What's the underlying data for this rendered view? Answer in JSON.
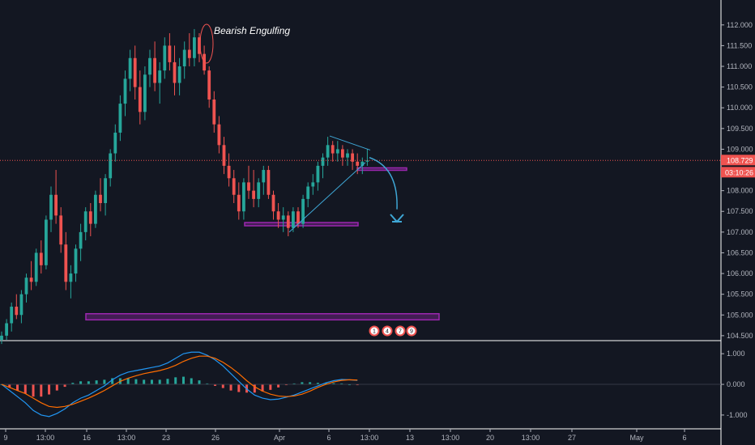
{
  "chart_data": [
    {
      "type": "candlestick",
      "title": "",
      "ylim": [
        104.4,
        112.25
      ],
      "y_ticks": [
        "112.000",
        "111.500",
        "111.000",
        "110.500",
        "110.000",
        "109.500",
        "109.000",
        "108.500",
        "108.000",
        "107.500",
        "107.000",
        "106.500",
        "106.000",
        "105.500",
        "105.000",
        "104.500"
      ],
      "y_tick_values": [
        112.0,
        111.5,
        111.0,
        110.5,
        110.0,
        109.5,
        109.0,
        108.5,
        108.0,
        107.5,
        107.0,
        106.5,
        106.0,
        105.5,
        105.0,
        104.5
      ],
      "x_ticks": [
        "9",
        "13:00",
        "16",
        "13:00",
        "23",
        "26",
        "Apr",
        "6",
        "13:00",
        "13",
        "13:00",
        "20",
        "13:00",
        "27",
        "May",
        "6"
      ],
      "grid": false,
      "current_price": 108.729,
      "current_price_label": "108.729",
      "countdown_label": "03:10:26",
      "series": [
        {
          "values": [
            [
              104.4,
              104.6,
              104.3,
              104.5
            ],
            [
              104.5,
              104.9,
              104.4,
              104.8
            ],
            [
              104.8,
              105.3,
              104.6,
              105.2
            ],
            [
              105.2,
              105.5,
              104.9,
              105.0
            ],
            [
              105.0,
              105.6,
              104.8,
              105.5
            ],
            [
              105.5,
              106.0,
              105.3,
              105.9
            ],
            [
              105.9,
              106.3,
              105.6,
              105.8
            ],
            [
              105.8,
              106.6,
              105.7,
              106.5
            ],
            [
              106.5,
              106.8,
              106.0,
              106.2
            ],
            [
              106.2,
              107.4,
              106.1,
              107.3
            ],
            [
              107.3,
              108.1,
              107.0,
              107.9
            ],
            [
              107.9,
              108.5,
              107.2,
              107.4
            ],
            [
              107.4,
              107.6,
              106.5,
              106.7
            ],
            [
              106.7,
              107.0,
              105.6,
              105.8
            ],
            [
              105.8,
              106.2,
              105.4,
              106.0
            ],
            [
              106.0,
              106.7,
              105.8,
              106.6
            ],
            [
              106.6,
              107.2,
              106.3,
              107.0
            ],
            [
              107.0,
              107.6,
              106.8,
              107.5
            ],
            [
              107.5,
              107.7,
              106.9,
              107.2
            ],
            [
              107.2,
              108.0,
              107.1,
              107.9
            ],
            [
              107.9,
              108.3,
              107.5,
              107.7
            ],
            [
              107.7,
              108.4,
              107.4,
              108.3
            ],
            [
              108.3,
              109.0,
              108.1,
              108.9
            ],
            [
              108.9,
              109.6,
              108.7,
              109.4
            ],
            [
              109.4,
              110.3,
              109.2,
              110.1
            ],
            [
              110.1,
              110.9,
              109.8,
              110.7
            ],
            [
              110.7,
              111.4,
              110.4,
              111.2
            ],
            [
              111.2,
              111.5,
              110.2,
              110.5
            ],
            [
              110.5,
              110.9,
              109.6,
              109.9
            ],
            [
              109.9,
              111.0,
              109.7,
              110.8
            ],
            [
              110.8,
              111.4,
              110.5,
              111.2
            ],
            [
              111.2,
              111.6,
              110.4,
              110.6
            ],
            [
              110.6,
              111.1,
              110.1,
              110.9
            ],
            [
              110.9,
              111.7,
              110.7,
              111.5
            ],
            [
              111.5,
              111.8,
              110.9,
              111.1
            ],
            [
              111.1,
              111.5,
              110.3,
              110.6
            ],
            [
              110.6,
              111.2,
              110.3,
              111.0
            ],
            [
              111.0,
              111.6,
              110.7,
              111.4
            ],
            [
              111.4,
              111.8,
              111.0,
              111.2
            ],
            [
              111.2,
              111.9,
              111.0,
              111.7
            ],
            [
              111.7,
              111.8,
              111.1,
              111.3
            ],
            [
              111.3,
              111.5,
              110.8,
              110.9
            ],
            [
              110.9,
              111.0,
              110.0,
              110.2
            ],
            [
              110.2,
              110.4,
              109.4,
              109.6
            ],
            [
              109.6,
              109.8,
              108.9,
              109.1
            ],
            [
              109.1,
              109.3,
              108.4,
              108.6
            ],
            [
              108.6,
              108.9,
              108.1,
              108.3
            ],
            [
              108.3,
              108.5,
              107.7,
              107.9
            ],
            [
              107.9,
              108.2,
              107.3,
              107.5
            ],
            [
              107.5,
              108.3,
              107.3,
              108.2
            ],
            [
              108.2,
              108.6,
              107.8,
              108.0
            ],
            [
              108.0,
              108.5,
              107.6,
              107.8
            ],
            [
              107.8,
              108.3,
              107.6,
              108.2
            ],
            [
              108.2,
              108.6,
              107.9,
              108.5
            ],
            [
              108.5,
              108.6,
              107.8,
              107.9
            ],
            [
              107.9,
              108.0,
              107.3,
              107.5
            ],
            [
              107.5,
              107.7,
              107.1,
              107.3
            ],
            [
              107.3,
              107.6,
              107.0,
              107.4
            ],
            [
              107.4,
              107.5,
              106.9,
              107.1
            ],
            [
              107.1,
              107.6,
              107.0,
              107.5
            ],
            [
              107.5,
              107.6,
              107.1,
              107.2
            ],
            [
              107.2,
              107.9,
              107.1,
              107.8
            ],
            [
              107.8,
              108.2,
              107.6,
              108.1
            ],
            [
              108.1,
              108.4,
              107.9,
              108.2
            ],
            [
              108.2,
              108.7,
              108.0,
              108.6
            ],
            [
              108.6,
              108.9,
              108.3,
              108.8
            ],
            [
              108.8,
              109.3,
              108.6,
              109.1
            ],
            [
              109.1,
              109.2,
              108.7,
              108.9
            ],
            [
              108.9,
              109.2,
              108.7,
              109.0
            ],
            [
              109.0,
              109.1,
              108.6,
              108.8
            ],
            [
              108.8,
              109.0,
              108.6,
              108.9
            ],
            [
              108.9,
              109.0,
              108.5,
              108.7
            ],
            [
              108.7,
              108.9,
              108.4,
              108.6
            ],
            [
              108.6,
              108.8,
              108.4,
              108.7
            ],
            [
              108.7,
              109.0,
              108.6,
              108.73
            ]
          ]
        }
      ]
    },
    {
      "type": "macd",
      "ylim": [
        -1.45,
        1.4
      ],
      "y_ticks": [
        "1.000",
        "0.000",
        "-1.000"
      ],
      "y_tick_values": [
        1.0,
        0.0,
        -1.0
      ],
      "series": [
        {
          "name": "",
          "values": [
            0.0,
            -0.2,
            -0.4,
            -0.6,
            -0.85,
            -1.0,
            -1.05,
            -0.95,
            -0.8,
            -0.6,
            -0.45,
            -0.35,
            -0.2,
            -0.05,
            0.15,
            0.3,
            0.4,
            0.45,
            0.5,
            0.55,
            0.6,
            0.7,
            0.85,
            1.0,
            1.05,
            1.05,
            0.95,
            0.8,
            0.6,
            0.35,
            0.1,
            -0.15,
            -0.35,
            -0.45,
            -0.5,
            -0.48,
            -0.42,
            -0.35,
            -0.25,
            -0.15,
            -0.05,
            0.05,
            0.12,
            0.16,
            0.15,
            0.13
          ]
        },
        {
          "name": "",
          "values": [
            0.0,
            -0.1,
            -0.2,
            -0.3,
            -0.45,
            -0.6,
            -0.72,
            -0.75,
            -0.72,
            -0.65,
            -0.55,
            -0.45,
            -0.33,
            -0.2,
            -0.05,
            0.1,
            0.2,
            0.28,
            0.35,
            0.4,
            0.45,
            0.52,
            0.62,
            0.75,
            0.85,
            0.92,
            0.92,
            0.85,
            0.72,
            0.55,
            0.35,
            0.12,
            -0.08,
            -0.22,
            -0.32,
            -0.38,
            -0.4,
            -0.38,
            -0.32,
            -0.22,
            -0.1,
            0.0,
            0.08,
            0.13,
            0.15,
            0.14
          ]
        }
      ]
    }
  ],
  "annotations": {
    "bearish_engulfing": "Bearish Engulfing",
    "badges": [
      "1",
      "4",
      "7",
      "9"
    ]
  },
  "colors": {
    "background": "#131722",
    "up": "#26a69a",
    "down": "#ef5350",
    "zone": "#9c27b0",
    "trendline": "#3fa7d6",
    "macd": "#2196f3",
    "signal": "#ff6d00",
    "price_line": "#ef5350"
  }
}
